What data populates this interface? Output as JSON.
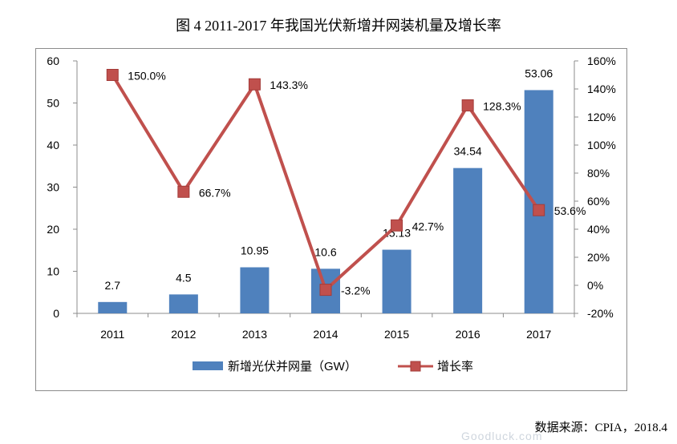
{
  "title": "图 4 2011-2017 年我国光伏新增并网装机量及增长率",
  "source": "数据来源：CPIA，2018.4",
  "watermark": "Goodluck.com",
  "colors": {
    "bar": "#4f81bd",
    "line": "#c0504d",
    "marker_edge": "#a33b38"
  },
  "chart_data": {
    "type": "bar",
    "categories": [
      "2011",
      "2012",
      "2013",
      "2014",
      "2015",
      "2016",
      "2017"
    ],
    "series": [
      {
        "name": "新增光伏并网量（GW）",
        "type": "bar",
        "axis": "left",
        "values": [
          2.7,
          4.5,
          10.95,
          10.6,
          15.13,
          34.54,
          53.06
        ],
        "labels": [
          "2.7",
          "4.5",
          "10.95",
          "10.6",
          "15.13",
          "34.54",
          "53.06"
        ]
      },
      {
        "name": "增长率",
        "type": "line",
        "axis": "right",
        "values": [
          150.0,
          66.7,
          143.3,
          -3.2,
          42.7,
          128.3,
          53.6
        ],
        "labels": [
          "150.0%",
          "66.7%",
          "143.3%",
          "-3.2%",
          "42.7%",
          "128.3%",
          "53.6%"
        ]
      }
    ],
    "y_left": {
      "min": 0,
      "max": 60,
      "ticks": [
        "0",
        "10",
        "20",
        "30",
        "40",
        "50",
        "60"
      ]
    },
    "y_right": {
      "min": -20,
      "max": 160,
      "ticks": [
        "-20%",
        "0%",
        "20%",
        "40%",
        "60%",
        "80%",
        "100%",
        "120%",
        "140%",
        "160%"
      ]
    },
    "legend": "bottom-center"
  }
}
